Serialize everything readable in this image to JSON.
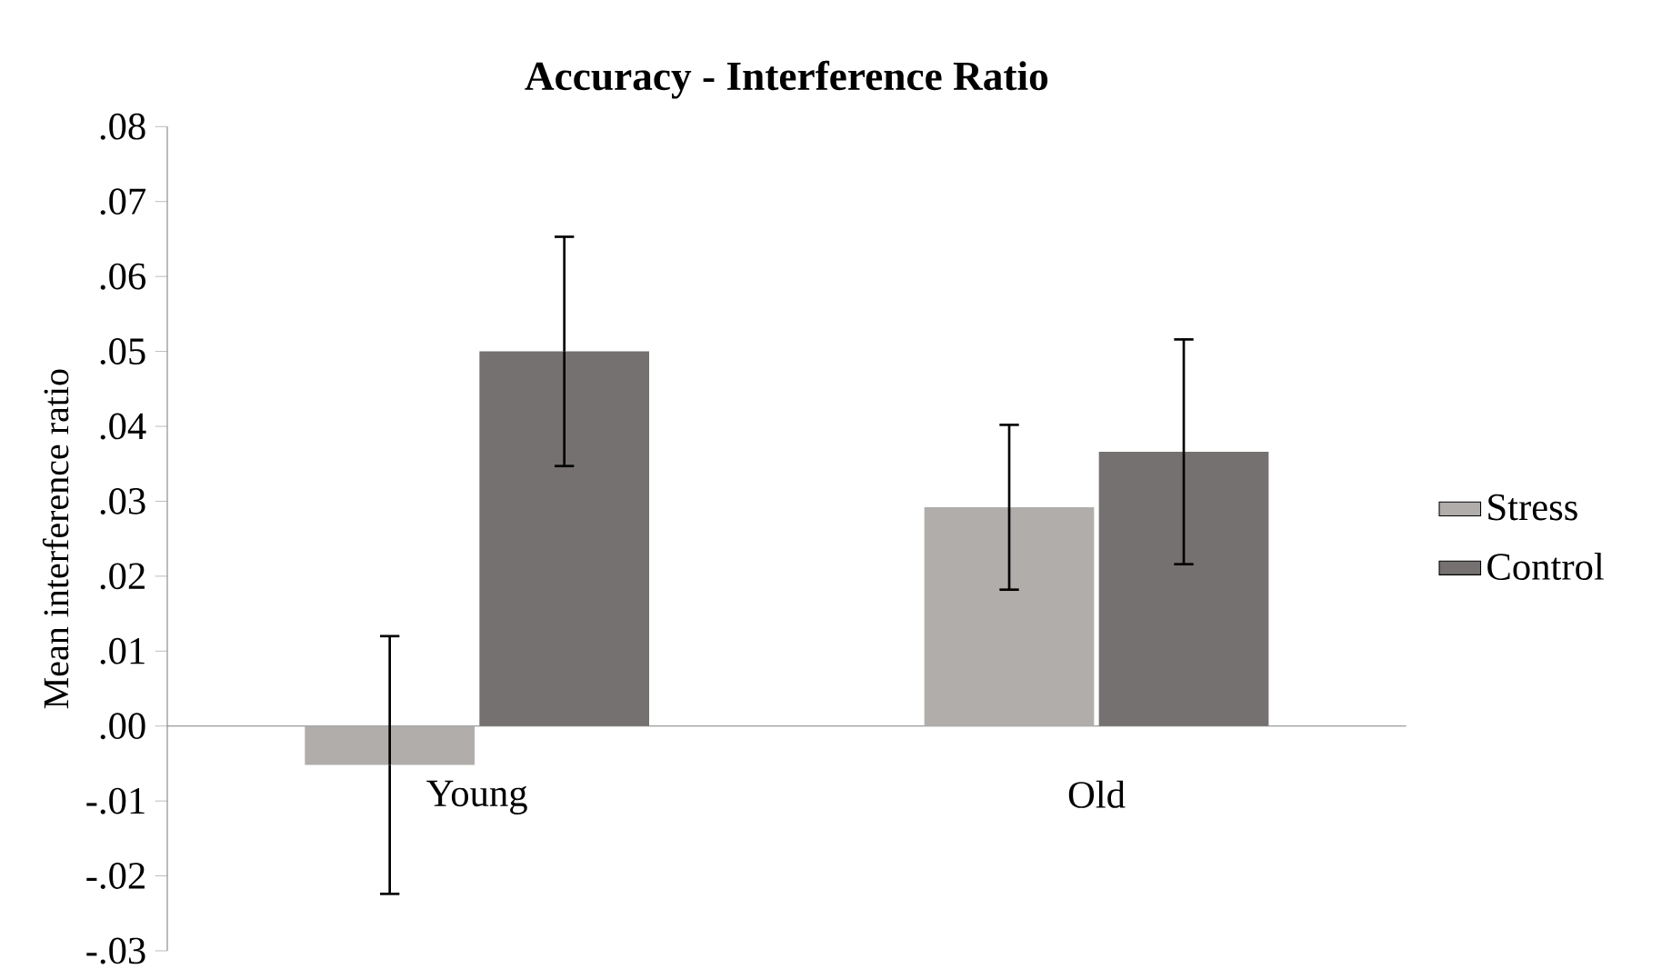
{
  "chart_data": {
    "type": "bar",
    "title": "**Accuracy - Interference Ratio**",
    "ylabel": "Mean interference ratio",
    "categories": [
      "Young",
      "Old"
    ],
    "series": [
      {
        "name": "Stress",
        "color": "#b0adab",
        "values": [
          -0.0052,
          0.0292
        ],
        "errors": [
          0.0172,
          0.011
        ]
      },
      {
        "name": "Control",
        "color": "#757170",
        "values": [
          0.05,
          0.0366
        ],
        "errors": [
          0.0153,
          0.015
        ]
      }
    ],
    "ylim": [
      -0.03,
      0.08
    ],
    "yticks": [
      {
        "value": -0.03,
        "label": "-.03"
      },
      {
        "value": -0.02,
        "label": "-.02"
      },
      {
        "value": -0.01,
        "label": "-.01"
      },
      {
        "value": 0,
        "label": ".00"
      },
      {
        "value": 0.01,
        "label": ".01"
      },
      {
        "value": 0.02,
        "label": ".02"
      },
      {
        "value": 0.03,
        "label": ".03"
      },
      {
        "value": 0.04,
        "label": ".04"
      },
      {
        "value": 0.05,
        "label": ".05"
      },
      {
        "value": 0.06,
        "label": ".06"
      },
      {
        "value": 0.07,
        "label": ".07"
      },
      {
        "value": 0.08,
        "label": ".08"
      }
    ],
    "legend": "right",
    "grid": false
  }
}
